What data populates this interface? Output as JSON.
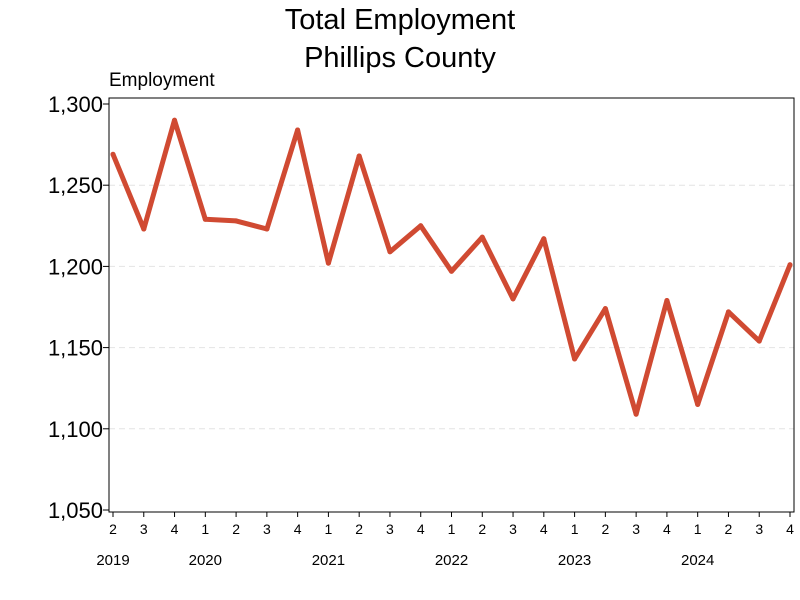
{
  "chart_data": {
    "type": "line",
    "title_lines": [
      "Total Employment",
      "Phillips County"
    ],
    "ylabel": "Employment",
    "xlabel": "",
    "ylim": [
      1050,
      1300
    ],
    "yticks": [
      1050,
      1100,
      1150,
      1200,
      1250,
      1300
    ],
    "ytick_labels": [
      "1,050",
      "1,100",
      "1,150",
      "1,200",
      "1,250",
      "1,300"
    ],
    "grid": "horizontal-dashed",
    "legend": "none",
    "line_color": "#d04a32",
    "categories": [
      "2",
      "3",
      "4",
      "1",
      "2",
      "3",
      "4",
      "1",
      "2",
      "3",
      "4",
      "1",
      "2",
      "3",
      "4",
      "1",
      "2",
      "3",
      "4",
      "1",
      "2",
      "3",
      "4"
    ],
    "years": [
      {
        "label": "2019",
        "index": 0
      },
      {
        "label": "2020",
        "index": 3
      },
      {
        "label": "2021",
        "index": 7
      },
      {
        "label": "2022",
        "index": 11
      },
      {
        "label": "2023",
        "index": 15
      },
      {
        "label": "2024",
        "index": 19
      }
    ],
    "series": [
      {
        "values": [
          1269,
          1223,
          1290,
          1229,
          1228,
          1223,
          1284,
          1202,
          1268,
          1209,
          1225,
          1197,
          1218,
          1180,
          1217,
          1143,
          1174,
          1109,
          1179,
          1115,
          1172,
          1154,
          1201
        ]
      }
    ]
  }
}
